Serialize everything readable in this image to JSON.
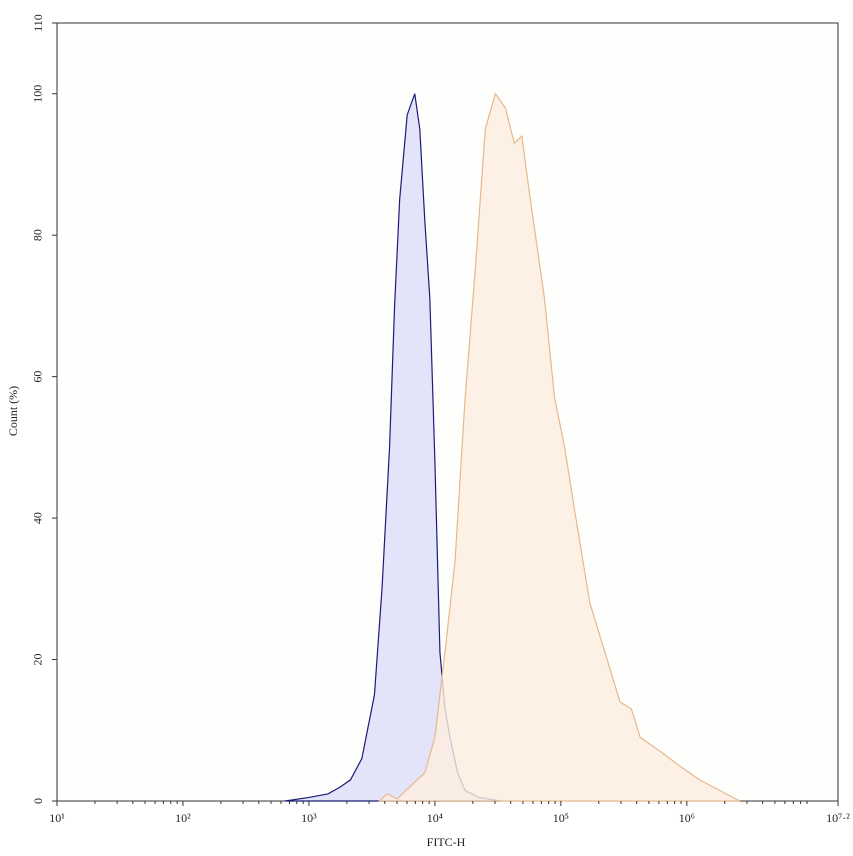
{
  "chart_data": {
    "type": "area",
    "xlabel": "FITC-H",
    "ylabel": "Count (%)",
    "xscale": "log",
    "xlim": [
      10,
      15848931.92
    ],
    "ylim": [
      0,
      110
    ],
    "xticks": [
      {
        "value": 10,
        "label": "10¹"
      },
      {
        "value": 100,
        "label": "10²"
      },
      {
        "value": 1000,
        "label": "10³"
      },
      {
        "value": 10000,
        "label": "10⁴"
      },
      {
        "value": 100000,
        "label": "10⁵"
      },
      {
        "value": 1000000,
        "label": "10⁶"
      },
      {
        "value": 15848931.92,
        "label": "10⁷·²"
      }
    ],
    "yticks": [
      0,
      20,
      40,
      60,
      80,
      100,
      110
    ],
    "series": [
      {
        "color": "#1c1c78",
        "fill": "#dcdcf7",
        "x": [
          646,
          1000,
          1413,
          1778,
          2138,
          2630,
          3311,
          3802,
          4365,
          4786,
          5248,
          6026,
          6918,
          7586,
          8318,
          9120,
          10000,
          10965,
          12023,
          13183,
          15136,
          17378,
          22387,
          33113
        ],
        "values": [
          0,
          0.5,
          1,
          2,
          3,
          6,
          15,
          30,
          50,
          70,
          85,
          97,
          100,
          95,
          82,
          71,
          48,
          21,
          13,
          9,
          4,
          1.5,
          0.5,
          0
        ]
      },
      {
        "color": "#e6b98c",
        "fill": "#fdeee0",
        "x": [
          3631,
          4169,
          5012,
          8318,
          10000,
          12023,
          14454,
          17378,
          20893,
          25119,
          30200,
          36308,
          42658,
          48978,
          56234,
          74131,
          89125,
          107152,
          128825,
          169824,
          223872,
          295121,
          363078,
          426580,
          616595,
          870964,
          1258925,
          1819701,
          2630268
        ],
        "values": [
          0,
          1,
          0.3,
          4,
          9,
          21,
          34,
          57,
          75,
          95,
          100,
          98,
          93,
          94,
          86,
          71,
          57,
          50,
          41,
          28,
          21,
          14,
          13,
          9,
          7,
          5,
          3,
          1.5,
          0
        ]
      }
    ]
  }
}
